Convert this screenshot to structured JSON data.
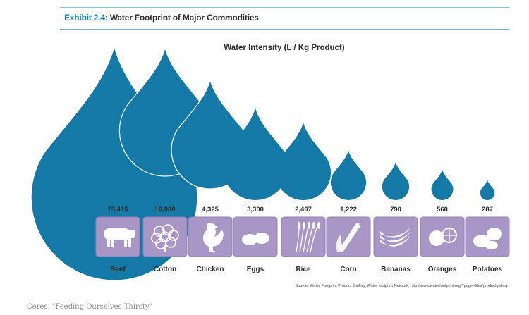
{
  "exhibit": {
    "label": "Exhibit 2.4:",
    "title": "Water Footprint of Major Commodities"
  },
  "chart_data": {
    "type": "bar",
    "title": "Water Intensity (L / Kg Product)",
    "categories": [
      "Beef",
      "Cotton",
      "Chicken",
      "Eggs",
      "Rice",
      "Corn",
      "Bananas",
      "Oranges",
      "Potatoes"
    ],
    "value_labels": [
      "15,415",
      "10,000",
      "4,325",
      "3,300",
      "2,497",
      "1,222",
      "790",
      "560",
      "287"
    ],
    "values": [
      15415,
      10000,
      4325,
      3300,
      2497,
      1222,
      790,
      560,
      287
    ],
    "icons": [
      "cow-icon",
      "cotton-boll-icon",
      "rooster-icon",
      "eggs-icon",
      "rice-stalk-icon",
      "corn-cob-icon",
      "bananas-icon",
      "oranges-icon",
      "potatoes-icon"
    ],
    "source": "Source: Water Footprint Product Gallery, Water footprint Network, http://www.waterfootprint.org/?page=files/productgallery",
    "colors": {
      "drop": "#1479a6",
      "tile": "#a896c6",
      "tile_border": "#9080b8",
      "label": "#2b2b2b",
      "drop_outline": "#ffffff"
    }
  },
  "caption": "Ceres, \"Feeding Ourselves Thirsty\""
}
